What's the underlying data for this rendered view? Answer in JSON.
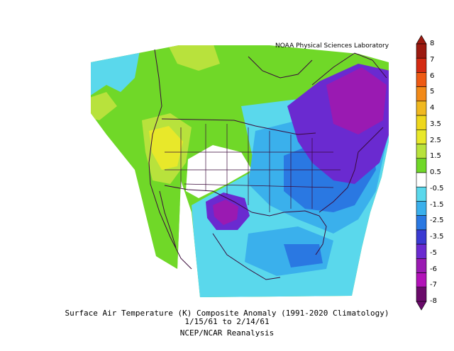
{
  "header": {
    "credit": "NOAA Physical Sciences Laboratory"
  },
  "caption": {
    "line1": "Surface Air Temperature (K) Composite Anomaly (1991-2020 Climatology)",
    "line2": "1/15/61  to 2/14/61",
    "line3": "NCEP/NCAR Reanalysis"
  },
  "colorbar": {
    "labels": [
      "8",
      "7",
      "6",
      "5",
      "4",
      "3.5",
      "2.5",
      "1.5",
      "0.5",
      "-0.5",
      "-1.5",
      "-2.5",
      "-3.5",
      "-5",
      "-6",
      "-7",
      "-8"
    ],
    "colors": [
      "#9c1a10",
      "#d42a12",
      "#ee5a14",
      "#f28a18",
      "#f0b820",
      "#eed71c",
      "#e8e82a",
      "#b8e23c",
      "#70d828",
      "#ffffff",
      "#5ad8ec",
      "#3ab0ec",
      "#2a78e2",
      "#3a3ad2",
      "#6a2ad0",
      "#9a1ab2",
      "#b212b8",
      "#6a0a6a"
    ]
  },
  "map": {
    "region": "North America",
    "variable": "Surface Air Temperature anomaly",
    "units": "K"
  }
}
